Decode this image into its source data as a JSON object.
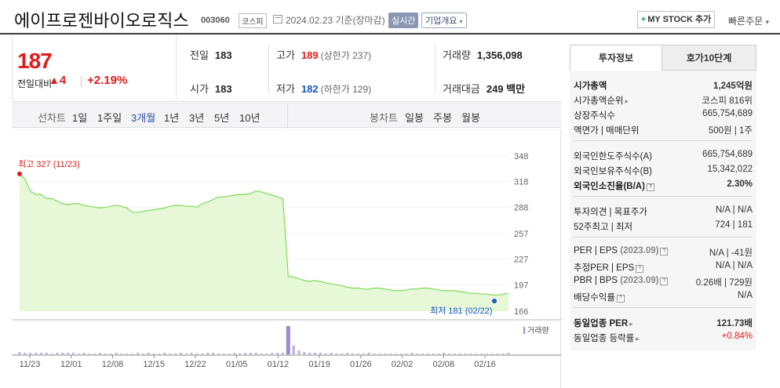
{
  "header": {
    "company_name": "에이프로젠바이오로직스",
    "code": "003060",
    "market": "코스피",
    "date": "2024.02.23 기준(장마감)",
    "realtime_label": "실시간",
    "overview_label": "기업개요",
    "mystock_label": "MY STOCK 추가",
    "quick_order_label": "빠른주문"
  },
  "price": {
    "current": "187",
    "vs_label": "전일대비",
    "change": "4",
    "change_pct": "+2.19%",
    "up_color": "#e01b1b"
  },
  "stats": {
    "prev_close_label": "전일",
    "prev_close": "183",
    "high_label": "고가",
    "high": "189",
    "upper_limit": "(상한가 237)",
    "volume_label": "거래량",
    "volume": "1,356,098",
    "open_label": "시가",
    "open": "183",
    "low_label": "저가",
    "low": "182",
    "lower_limit": "(하한가 129)",
    "amount_label": "거래대금",
    "amount": "249 백만"
  },
  "chart_tabs": {
    "line_label": "선차트",
    "periods": [
      "1일",
      "1주일",
      "3개월",
      "1년",
      "3년",
      "5년",
      "10년"
    ],
    "selected": "3개월",
    "candle_label": "봉차트",
    "candle_periods": [
      "일봉",
      "주봉",
      "월봉"
    ]
  },
  "chart_data": {
    "type": "area",
    "y_ticks": [
      348,
      318,
      288,
      257,
      227,
      197,
      166
    ],
    "ylim": [
      166,
      348
    ],
    "x_ticks": [
      "11/23",
      "12/01",
      "12/08",
      "12/15",
      "12/22",
      "01/05",
      "01/12",
      "01/19",
      "01/26",
      "02/02",
      "02/08",
      "02/16"
    ],
    "high_label": "최고 327 (11/23)",
    "low_label": "최저 181 (02/22)",
    "volume_legend": "거래량",
    "fill_color": "#e6f8d8",
    "line_color": "#7ed957",
    "values": [
      327,
      321,
      307,
      303,
      303,
      298,
      298,
      295,
      292,
      291,
      292,
      292,
      290,
      289,
      288,
      287,
      288,
      289,
      290,
      289,
      287,
      282,
      282,
      283,
      284,
      285,
      286,
      287,
      289,
      290,
      290,
      289,
      289,
      288,
      292,
      294,
      297,
      300,
      300,
      301,
      302,
      303,
      303,
      304,
      307,
      306,
      304,
      302,
      300,
      298,
      207,
      206,
      204,
      202,
      201,
      202,
      201,
      199,
      198,
      197,
      196,
      194,
      193,
      193,
      192,
      192,
      193,
      193,
      192,
      191,
      190,
      190,
      191,
      192,
      192,
      193,
      193,
      192,
      191,
      190,
      190,
      190,
      189,
      188,
      187,
      187,
      186,
      186,
      185,
      185,
      186,
      187
    ],
    "volumes": [
      3,
      2,
      2,
      2,
      2,
      2,
      1,
      2,
      2,
      2,
      2,
      1,
      2,
      1,
      1,
      2,
      1,
      1,
      2,
      1,
      1,
      1,
      2,
      1,
      2,
      1,
      1,
      2,
      1,
      1,
      2,
      1,
      2,
      1,
      1,
      2,
      2,
      1,
      1,
      1,
      2,
      1,
      2,
      2,
      2,
      1,
      1,
      2,
      2,
      2,
      38,
      12,
      5,
      3,
      2,
      2,
      2,
      1,
      2,
      1,
      1,
      2,
      1,
      1,
      1,
      2,
      1,
      1,
      1,
      1,
      1,
      1,
      1,
      2,
      1,
      1,
      1,
      1,
      1,
      2,
      1,
      1,
      1,
      1,
      1,
      1,
      1,
      1,
      1,
      1,
      1,
      2
    ]
  },
  "side_panel": {
    "tab_active": "투자정보",
    "tab_other": "호가10단계",
    "rows1": [
      {
        "k": "시가총액",
        "v": "1,245억원",
        "bold": true
      },
      {
        "k": "시가총액순위",
        "v": "코스피 816위",
        "arrow": true
      },
      {
        "k": "상장주식수",
        "v": "665,754,689"
      },
      {
        "k": "액면가 | 매매단위",
        "v": "500원 | 1주"
      }
    ],
    "rows2": [
      {
        "k": "외국인한도주식수(A)",
        "v": "665,754,689"
      },
      {
        "k": "외국인보유주식수(B)",
        "v": "15,342,022"
      },
      {
        "k": "외국인소진율(B/A)",
        "v": "2.30%",
        "bold": true,
        "q": true
      }
    ],
    "rows3": [
      {
        "k": "투자의견 | 목표주가",
        "v": "N/A | N/A"
      },
      {
        "k": "52주최고 | 최저",
        "v": "724 | 181"
      }
    ],
    "rows4": [
      {
        "k": "PER | EPS",
        "year": "(2023.09)",
        "v": "N/A | -41원",
        "q": true
      },
      {
        "k": "추정PER | EPS",
        "v": "N/A | N/A",
        "q": true
      },
      {
        "k": "PBR | BPS",
        "year": "(2023.09)",
        "v": "0.26배 | 729원",
        "q": true
      },
      {
        "k": "배당수익률",
        "v": "N/A",
        "q": true
      }
    ],
    "rows5": [
      {
        "k": "동일업종 PER",
        "v": "121.73배",
        "bold": true,
        "arrow": true
      },
      {
        "k": "동일업종 등락률",
        "v": "+0.84%",
        "red": true,
        "arrow": true
      }
    ]
  }
}
